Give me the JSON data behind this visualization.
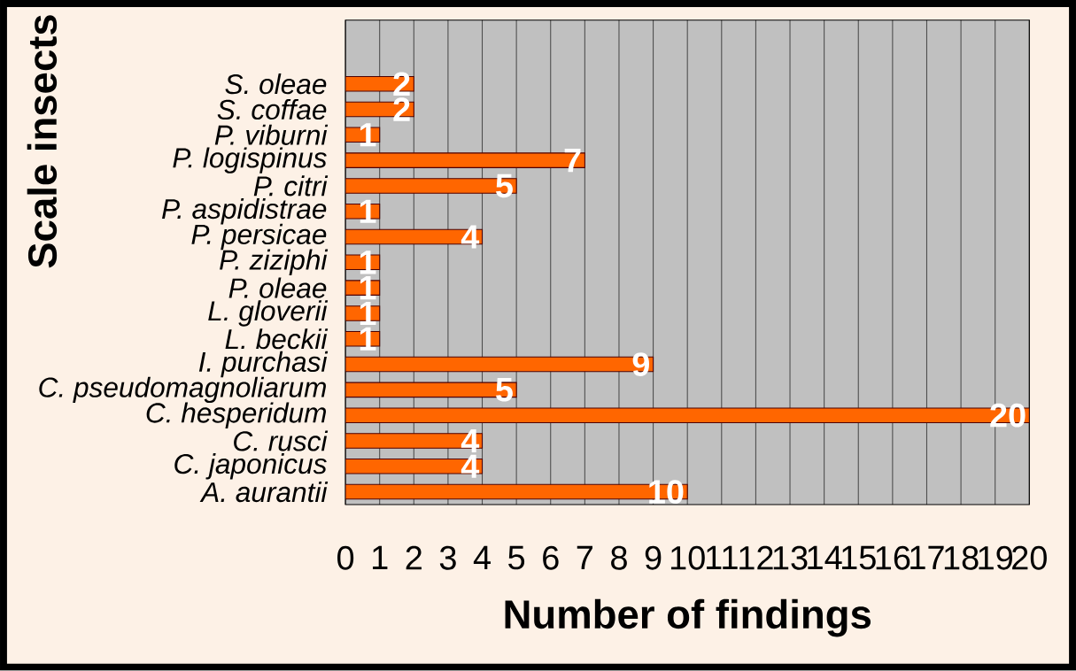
{
  "chart_data": {
    "type": "bar",
    "orientation": "horizontal",
    "xlabel": "Number of findings",
    "ylabel": "Scale insects",
    "categories": [
      "S. oleae",
      "S. coffae",
      "P. viburni",
      "P. logispinus",
      "P. citri",
      "P. aspidistrae",
      "P. persicae",
      "P. ziziphi",
      "P. oleae",
      "L.  gloverii",
      "L. beckii",
      "I. purchasi",
      "C. pseudomagnoliarum",
      "C.  hesperidum",
      "C. rusci",
      "C. japonicus",
      "A. aurantii"
    ],
    "values": [
      2,
      2,
      1,
      7,
      5,
      1,
      4,
      1,
      1,
      1,
      1,
      9,
      5,
      20,
      4,
      4,
      10
    ],
    "color": "#ff6600",
    "xlim": [
      0,
      20
    ],
    "xticks": [
      0,
      1,
      2,
      3,
      4,
      5,
      6,
      7,
      8,
      9,
      10,
      11,
      12,
      13,
      14,
      15,
      16,
      17,
      18,
      19,
      20
    ],
    "grid": "x",
    "data_labels": true
  }
}
